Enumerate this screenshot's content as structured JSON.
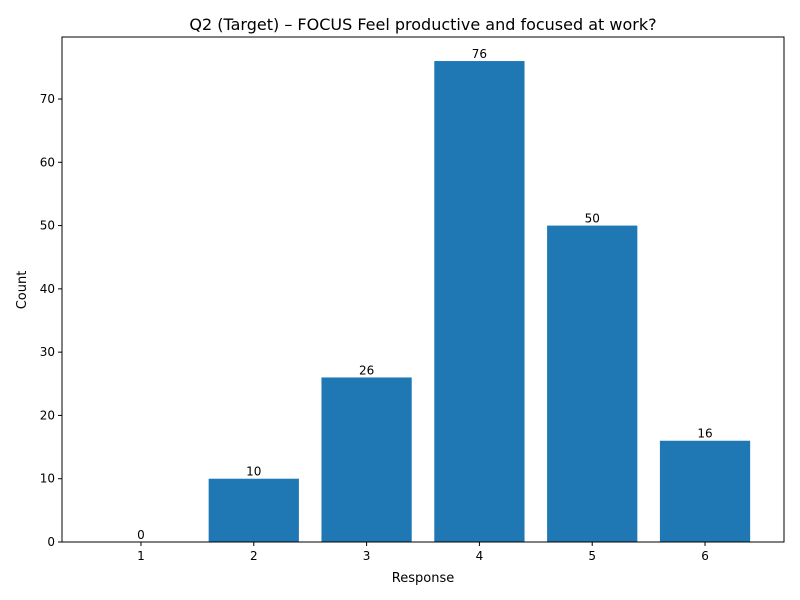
{
  "chart_data": {
    "type": "bar",
    "title": "Q2 (Target) – FOCUS Feel productive and focused at work?",
    "xlabel": "Response",
    "ylabel": "Count",
    "categories": [
      "1",
      "2",
      "3",
      "4",
      "5",
      "6"
    ],
    "values": [
      0,
      10,
      26,
      76,
      50,
      16
    ],
    "data_labels": [
      "0",
      "10",
      "26",
      "76",
      "50",
      "16"
    ],
    "yticks": [
      0,
      10,
      20,
      30,
      40,
      50,
      60,
      70
    ],
    "ylim": [
      0,
      79.8
    ],
    "grid": false,
    "bar_color": "#1f77b4"
  }
}
